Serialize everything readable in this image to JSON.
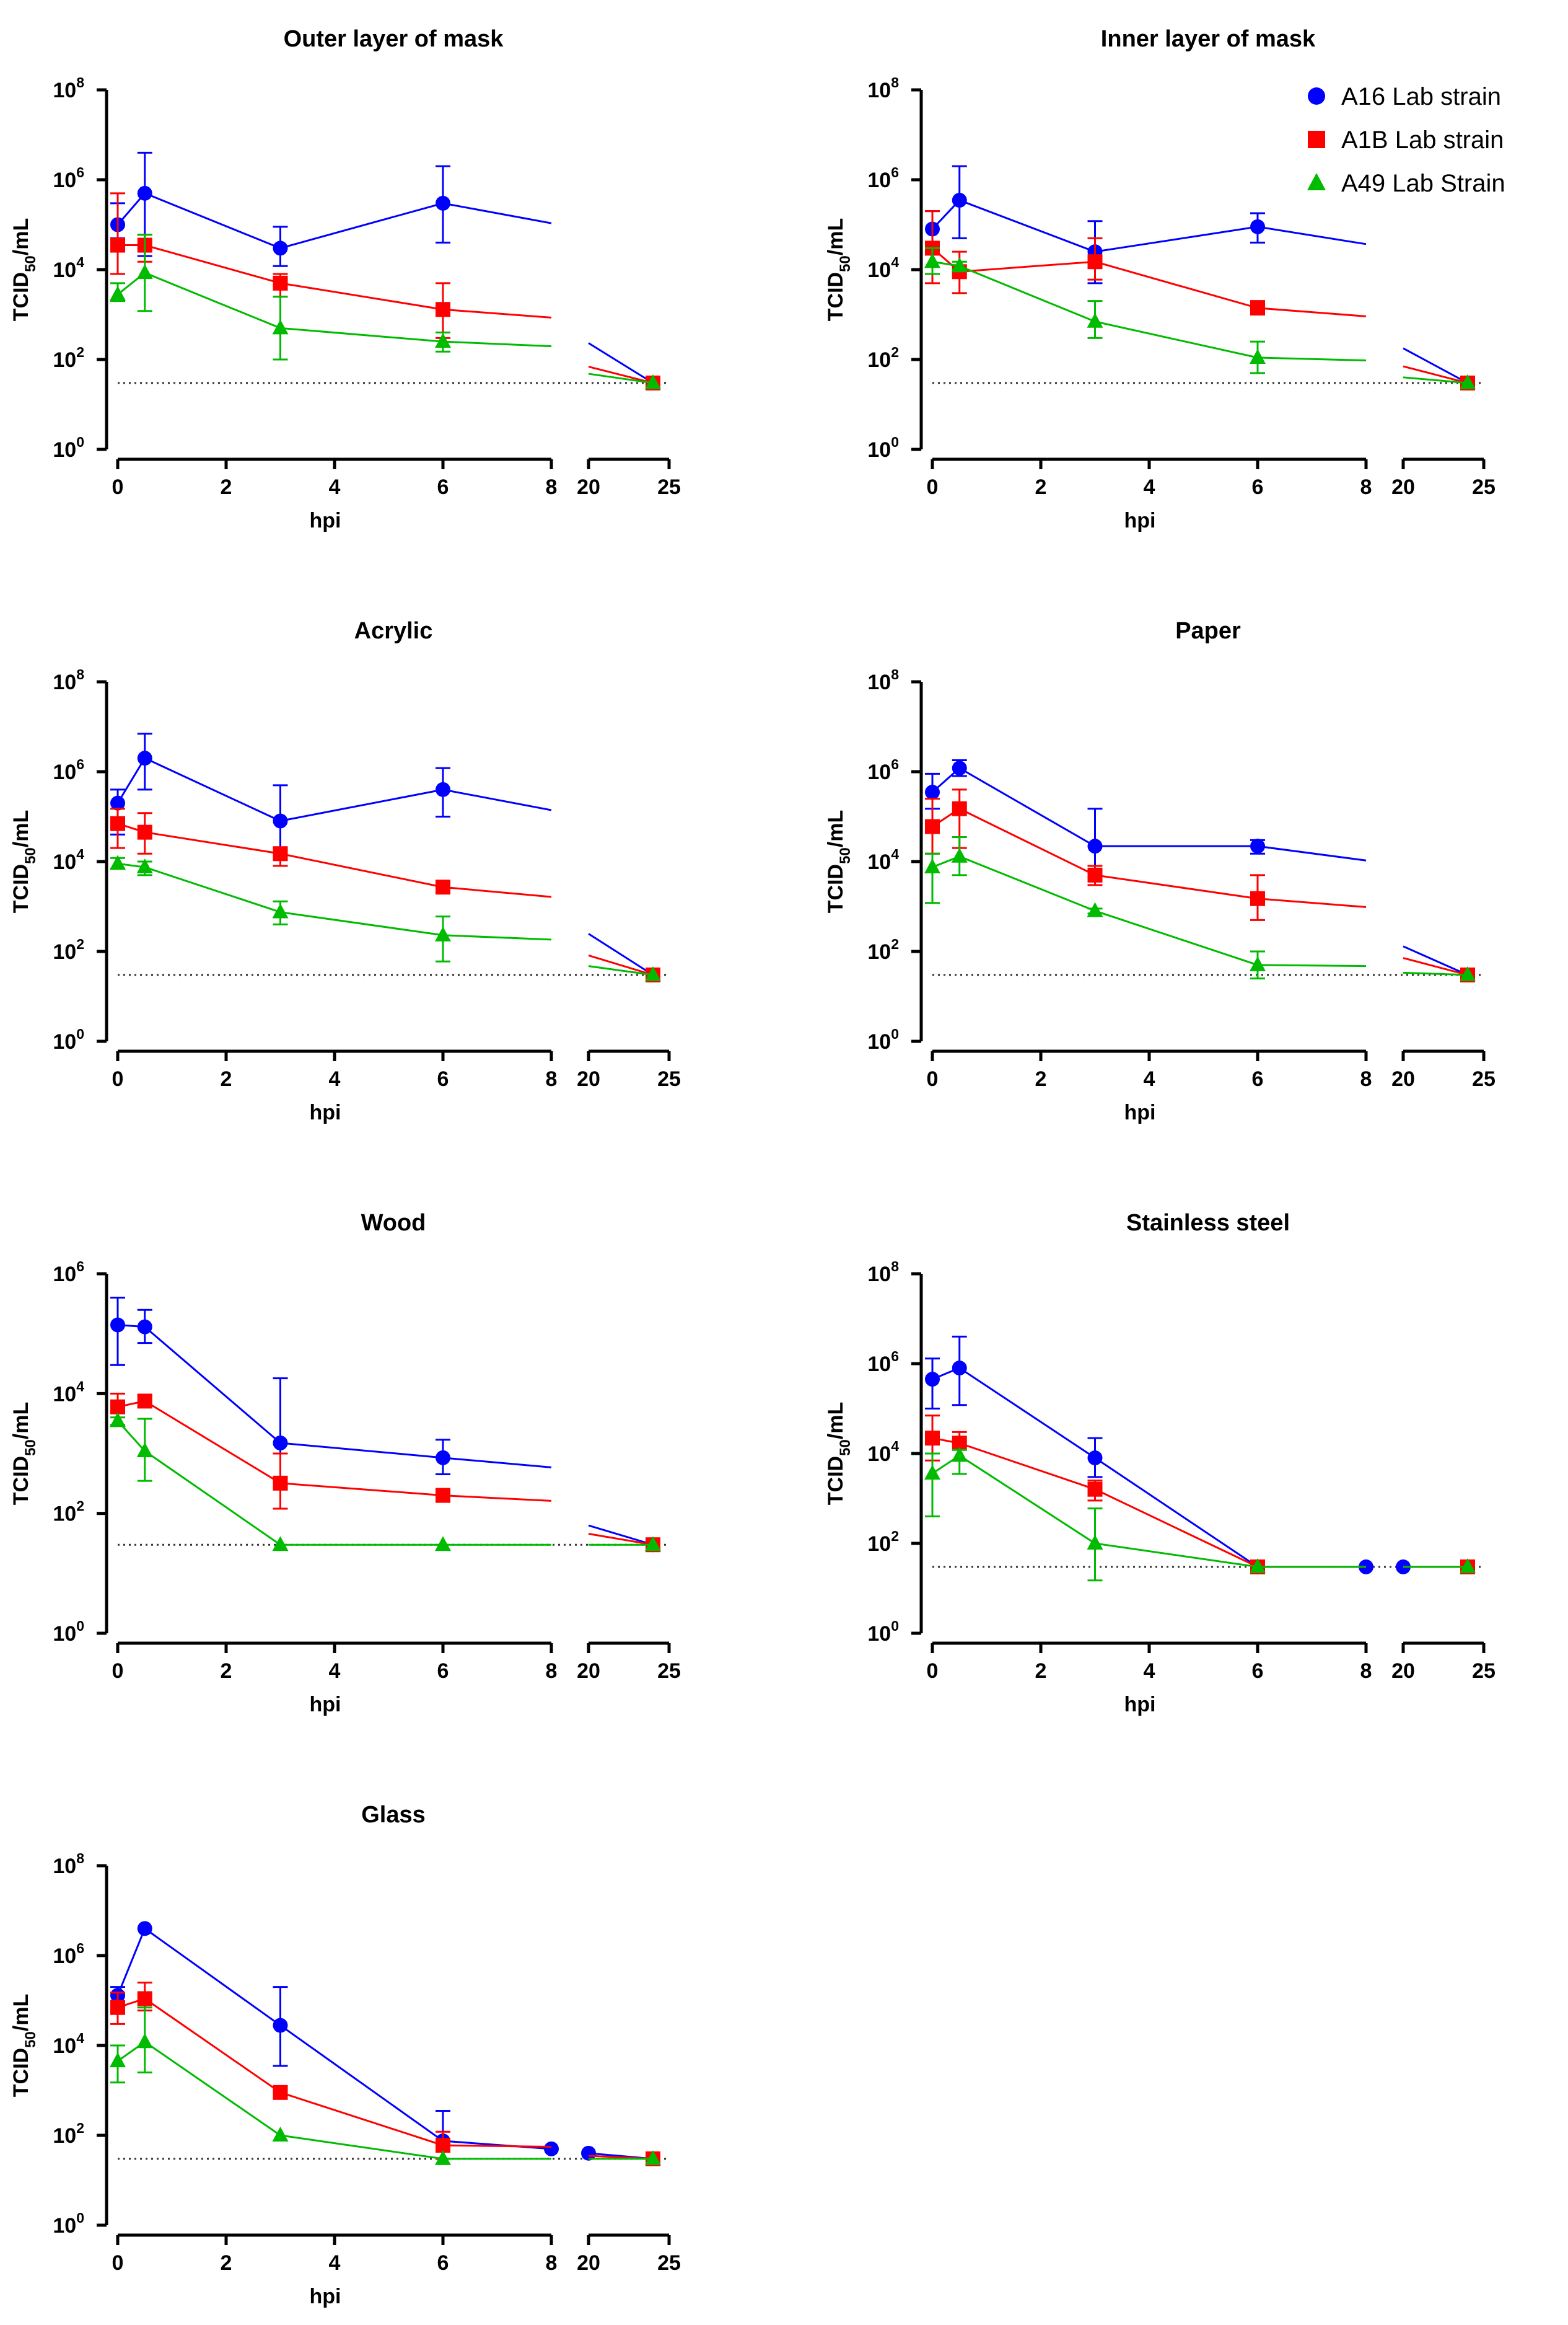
{
  "chart_data": [
    {
      "type": "line",
      "title": "Outer layer of mask",
      "xlabel": "hpi",
      "ylabel_main": "TCID",
      "ylabel_sub": "50",
      "ylabel_tail": "/mL",
      "y_scale": "log10",
      "ylim_exp": [
        0,
        8
      ],
      "y_tick_base": "10",
      "y_tick_exponents": [
        "0",
        "2",
        "4",
        "6",
        "8"
      ],
      "x_ticks_left": [
        "0",
        "2",
        "4",
        "6",
        "8"
      ],
      "x_ticks_right": [
        "20",
        "25"
      ],
      "x_break": "8 to 20",
      "detection_limit": 30,
      "series": [
        {
          "name": "A16 Lab strain",
          "x": [
            0,
            0.5,
            3,
            6,
            24
          ],
          "y": [
            100000,
            500000,
            30000,
            300000,
            30
          ],
          "err_low": [
            50000,
            20000,
            12000,
            40000,
            30
          ],
          "err_high": [
            300000,
            4000000,
            90000,
            2000000,
            30
          ]
        },
        {
          "name": "A1B Lab strain",
          "x": [
            0,
            0.5,
            3,
            6,
            24
          ],
          "y": [
            35000,
            35000,
            5000,
            1300,
            30
          ],
          "err_low": [
            8000,
            15000,
            2500,
            300,
            30
          ],
          "err_high": [
            500000,
            60000,
            8000,
            5000,
            30
          ]
        },
        {
          "name": "A49 Lab Strain",
          "x": [
            0,
            0.5,
            3,
            6,
            24
          ],
          "y": [
            2800,
            8500,
            500,
            250,
            30
          ],
          "err_low": [
            2000,
            1200,
            100,
            150,
            30
          ],
          "err_high": [
            5000,
            60000,
            2500,
            400,
            30
          ]
        }
      ]
    },
    {
      "type": "line",
      "title": "Inner layer of mask",
      "xlabel": "hpi",
      "ylabel_main": "TCID",
      "ylabel_sub": "50",
      "ylabel_tail": "/mL",
      "y_scale": "log10",
      "ylim_exp": [
        0,
        8
      ],
      "y_tick_base": "10",
      "y_tick_exponents": [
        "0",
        "2",
        "4",
        "6",
        "8"
      ],
      "x_ticks_left": [
        "0",
        "2",
        "4",
        "6",
        "8"
      ],
      "x_ticks_right": [
        "20",
        "25"
      ],
      "x_break": "8 to 20",
      "detection_limit": 30,
      "series": [
        {
          "name": "A16 Lab strain",
          "x": [
            0,
            0.5,
            3,
            6,
            24
          ],
          "y": [
            80000,
            350000,
            25000,
            90000,
            30
          ],
          "err_low": [
            30000,
            50000,
            5000,
            40000,
            30
          ],
          "err_high": [
            200000,
            2000000,
            120000,
            180000,
            30
          ]
        },
        {
          "name": "A1B Lab strain",
          "x": [
            0,
            0.5,
            3,
            6,
            24
          ],
          "y": [
            30000,
            9000,
            15000,
            1400,
            30
          ],
          "err_low": [
            5000,
            3000,
            6000,
            1000,
            30
          ],
          "err_high": [
            200000,
            25000,
            50000,
            2000,
            30
          ]
        },
        {
          "name": "A49 Lab Strain",
          "x": [
            0,
            0.5,
            3,
            6,
            24
          ],
          "y": [
            15000,
            12000,
            700,
            110,
            30
          ],
          "err_low": [
            8000,
            10000,
            300,
            50,
            30
          ],
          "err_high": [
            30000,
            15000,
            2000,
            250,
            30
          ]
        }
      ]
    },
    {
      "type": "line",
      "title": "Acrylic",
      "xlabel": "hpi",
      "ylabel_main": "TCID",
      "ylabel_sub": "50",
      "ylabel_tail": "/mL",
      "y_scale": "log10",
      "ylim_exp": [
        0,
        8
      ],
      "y_tick_base": "10",
      "y_tick_exponents": [
        "0",
        "2",
        "4",
        "6",
        "8"
      ],
      "x_ticks_left": [
        "0",
        "2",
        "4",
        "6",
        "8"
      ],
      "x_ticks_right": [
        "20",
        "25"
      ],
      "x_break": "8 to 20",
      "detection_limit": 30,
      "series": [
        {
          "name": "A16 Lab strain",
          "x": [
            0,
            0.5,
            3,
            6,
            24
          ],
          "y": [
            200000,
            2000000,
            80000,
            400000,
            30
          ],
          "err_low": [
            40000,
            400000,
            12000,
            100000,
            30
          ],
          "err_high": [
            400000,
            7000000,
            500000,
            1200000,
            30
          ]
        },
        {
          "name": "A1B Lab strain",
          "x": [
            0,
            0.5,
            3,
            6,
            24
          ],
          "y": [
            70000,
            45000,
            15000,
            2700,
            30
          ],
          "err_low": [
            20000,
            15000,
            8000,
            2500,
            30
          ],
          "err_high": [
            150000,
            120000,
            20000,
            3000,
            30
          ]
        },
        {
          "name": "A49 Lab Strain",
          "x": [
            0,
            0.5,
            3,
            6,
            24
          ],
          "y": [
            9000,
            7500,
            750,
            230,
            30
          ],
          "err_low": [
            7000,
            5000,
            400,
            60,
            30
          ],
          "err_high": [
            12000,
            10000,
            1300,
            600,
            30
          ]
        }
      ]
    },
    {
      "type": "line",
      "title": "Paper",
      "xlabel": "hpi",
      "ylabel_main": "TCID",
      "ylabel_sub": "50",
      "ylabel_tail": "/mL",
      "y_scale": "log10",
      "ylim_exp": [
        0,
        8
      ],
      "y_tick_base": "10",
      "y_tick_exponents": [
        "0",
        "2",
        "4",
        "6",
        "8"
      ],
      "x_ticks_left": [
        "0",
        "2",
        "4",
        "6",
        "8"
      ],
      "x_ticks_right": [
        "20",
        "25"
      ],
      "x_break": "8 to 20",
      "detection_limit": 30,
      "series": [
        {
          "name": "A16 Lab strain",
          "x": [
            0,
            0.5,
            3,
            6,
            24
          ],
          "y": [
            350000,
            1200000,
            22000,
            22000,
            30
          ],
          "err_low": [
            150000,
            800000,
            5000,
            15000,
            30
          ],
          "err_high": [
            900000,
            1800000,
            150000,
            30000,
            30
          ]
        },
        {
          "name": "A1B Lab strain",
          "x": [
            0,
            0.5,
            3,
            6,
            24
          ],
          "y": [
            60000,
            150000,
            5000,
            1500,
            30
          ],
          "err_low": [
            15000,
            20000,
            3000,
            500,
            30
          ],
          "err_high": [
            250000,
            400000,
            8000,
            5000,
            30
          ]
        },
        {
          "name": "A49 Lab Strain",
          "x": [
            0,
            0.5,
            3,
            6,
            24
          ],
          "y": [
            7500,
            13000,
            800,
            50,
            30
          ],
          "err_low": [
            1200,
            5000,
            700,
            25,
            30
          ],
          "err_high": [
            15000,
            35000,
            900,
            100,
            30
          ]
        }
      ]
    },
    {
      "type": "line",
      "title": "Wood",
      "xlabel": "hpi",
      "ylabel_main": "TCID",
      "ylabel_sub": "50",
      "ylabel_tail": "/mL",
      "y_scale": "log10",
      "ylim_exp": [
        0,
        6
      ],
      "y_tick_base": "10",
      "y_tick_exponents": [
        "0",
        "2",
        "4",
        "6"
      ],
      "x_ticks_left": [
        "0",
        "2",
        "4",
        "6",
        "8"
      ],
      "x_ticks_right": [
        "20",
        "25"
      ],
      "x_break": "8 to 20",
      "detection_limit": 30,
      "series": [
        {
          "name": "A16 Lab strain",
          "x": [
            0,
            0.5,
            3,
            6,
            24
          ],
          "y": [
            140000,
            130000,
            1500,
            850,
            30
          ],
          "err_low": [
            30000,
            70000,
            120,
            450,
            30
          ],
          "err_high": [
            400000,
            250000,
            18000,
            1700,
            30
          ]
        },
        {
          "name": "A1B Lab strain",
          "x": [
            0,
            0.5,
            3,
            6,
            24
          ],
          "y": [
            6000,
            7500,
            320,
            200,
            30
          ],
          "err_low": [
            3000,
            6000,
            120,
            180,
            30
          ],
          "err_high": [
            10000,
            9000,
            1000,
            220,
            30
          ]
        },
        {
          "name": "A49 Lab Strain",
          "x": [
            0,
            0.5,
            3,
            6,
            24
          ],
          "y": [
            3500,
            1100,
            30,
            30,
            30
          ],
          "err_low": [
            3000,
            350,
            30,
            30,
            30
          ],
          "err_high": [
            4000,
            3800,
            30,
            30,
            30
          ]
        }
      ]
    },
    {
      "type": "line",
      "title": "Stainless steel",
      "xlabel": "hpi",
      "ylabel_main": "TCID",
      "ylabel_sub": "50",
      "ylabel_tail": "/mL",
      "y_scale": "log10",
      "ylim_exp": [
        0,
        8
      ],
      "y_tick_base": "10",
      "y_tick_exponents": [
        "0",
        "2",
        "4",
        "6",
        "8"
      ],
      "x_ticks_left": [
        "0",
        "2",
        "4",
        "6",
        "8"
      ],
      "x_ticks_right": [
        "20",
        "25"
      ],
      "x_break": "8 to 20",
      "detection_limit": 30,
      "series": [
        {
          "name": "A16 Lab strain",
          "x": [
            0,
            0.5,
            3,
            6,
            8,
            20,
            24
          ],
          "y": [
            450000,
            800000,
            8000,
            30,
            30,
            30,
            30
          ],
          "err_low": [
            100000,
            120000,
            3000,
            30,
            30,
            30,
            30
          ],
          "err_high": [
            1300000,
            4000000,
            22000,
            30,
            30,
            30,
            30
          ]
        },
        {
          "name": "A1B Lab strain",
          "x": [
            0,
            0.5,
            3,
            6,
            24
          ],
          "y": [
            22000,
            17000,
            1600,
            30,
            30
          ],
          "err_low": [
            7000,
            7000,
            900,
            30,
            30
          ],
          "err_high": [
            70000,
            30000,
            2500,
            30,
            30
          ]
        },
        {
          "name": "A49 Lab Strain",
          "x": [
            0,
            0.5,
            3,
            6,
            24
          ],
          "y": [
            3600,
            9000,
            100,
            30,
            30
          ],
          "err_low": [
            400,
            3500,
            15,
            30,
            30
          ],
          "err_high": [
            10000,
            12000,
            600,
            30,
            30
          ]
        }
      ]
    },
    {
      "type": "line",
      "title": "Glass",
      "xlabel": "hpi",
      "ylabel_main": "TCID",
      "ylabel_sub": "50",
      "ylabel_tail": "/mL",
      "y_scale": "log10",
      "ylim_exp": [
        0,
        8
      ],
      "y_tick_base": "10",
      "y_tick_exponents": [
        "0",
        "2",
        "4",
        "6",
        "8"
      ],
      "x_ticks_left": [
        "0",
        "2",
        "4",
        "6",
        "8"
      ],
      "x_ticks_right": [
        "20",
        "25"
      ],
      "x_break": "8 to 20",
      "detection_limit": 30,
      "series": [
        {
          "name": "A16 Lab strain",
          "x": [
            0,
            0.5,
            3,
            6,
            8,
            20,
            24
          ],
          "y": [
            130000,
            4000000,
            28000,
            75,
            50,
            40,
            30
          ],
          "err_low": [
            80000,
            4000000,
            3500,
            30,
            50,
            40,
            30
          ],
          "err_high": [
            200000,
            4000000,
            200000,
            350,
            50,
            40,
            30
          ]
        },
        {
          "name": "A1B Lab strain",
          "x": [
            0,
            0.5,
            3,
            6,
            24
          ],
          "y": [
            70000,
            110000,
            900,
            60,
            30
          ],
          "err_low": [
            30000,
            60000,
            700,
            30,
            30
          ],
          "err_high": [
            150000,
            250000,
            1000,
            120,
            30
          ]
        },
        {
          "name": "A49 Lab Strain",
          "x": [
            0,
            0.5,
            3,
            6,
            24
          ],
          "y": [
            4500,
            12000,
            100,
            30,
            30
          ],
          "err_low": [
            1500,
            2500,
            100,
            30,
            30
          ],
          "err_high": [
            10000,
            70000,
            100,
            30,
            30
          ]
        }
      ]
    }
  ],
  "legend": {
    "items": [
      {
        "label": "A16 Lab strain",
        "color": "#0000FF",
        "marker": "circle"
      },
      {
        "label": "A1B Lab strain",
        "color": "#FF0000",
        "marker": "square"
      },
      {
        "label": "A49 Lab Strain",
        "color": "#00BB00",
        "marker": "triangle"
      }
    ],
    "placement": "top-right of Inner layer of mask panel"
  },
  "colors": {
    "series": [
      "#0000FF",
      "#FF0000",
      "#00BB00"
    ],
    "axis": "#000000",
    "limit_line": "#333333"
  }
}
